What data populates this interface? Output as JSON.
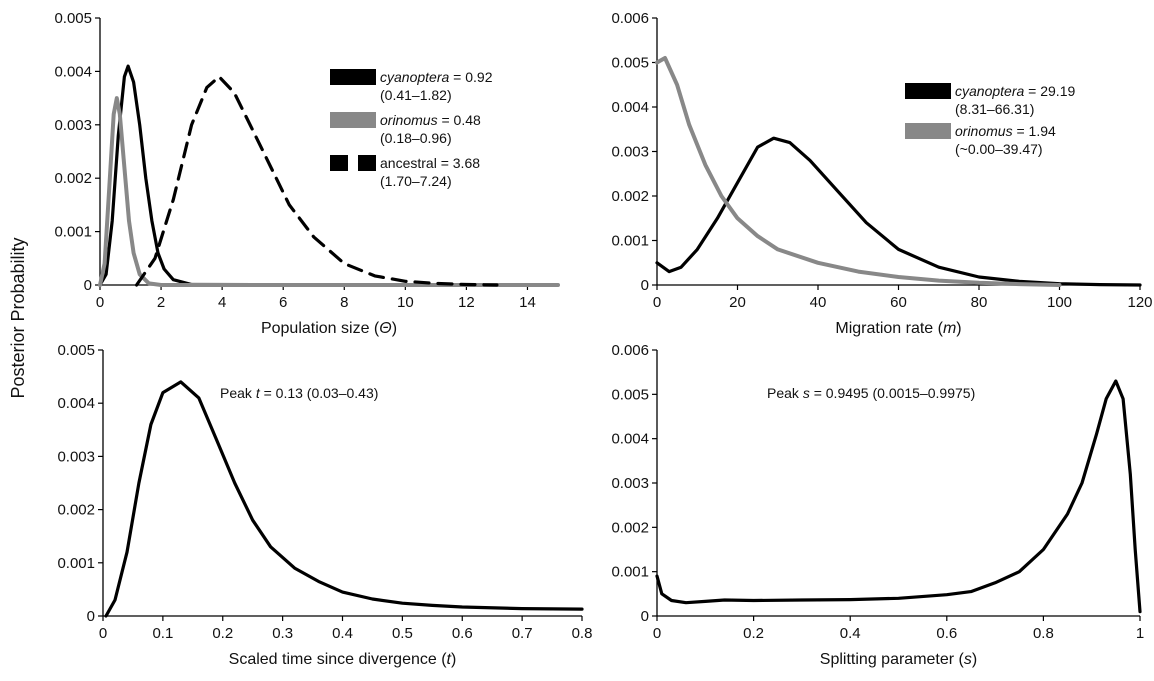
{
  "figure": {
    "shared_ylabel": "Posterior Probability"
  },
  "chart_data": [
    {
      "id": "population-size",
      "type": "line",
      "xlabel": "Population size (Θ)",
      "xlabel_parts": [
        "Population size (",
        "Θ",
        ")"
      ],
      "xlim": [
        0,
        15
      ],
      "ylim": [
        0,
        0.005
      ],
      "xticks": [
        0,
        2,
        4,
        6,
        8,
        10,
        12,
        14
      ],
      "xtick_labels": [
        "0",
        "2",
        "4",
        "6",
        "8",
        "10",
        "12",
        "14"
      ],
      "yticks": [
        0,
        0.001,
        0.002,
        0.003,
        0.004,
        0.005
      ],
      "ytick_labels": [
        "0",
        "0.001",
        "0.002",
        "0.003",
        "0.004",
        "0.005"
      ],
      "legend_position": "top-right",
      "series": [
        {
          "name": "cyanoptera",
          "color": "#000000",
          "dash": "solid",
          "legend_label": [
            "cyanoptera",
            " =  0.92"
          ],
          "legend_ci": "(0.41–1.82)",
          "points": [
            [
              0,
              0
            ],
            [
              0.2,
              0.0002
            ],
            [
              0.4,
              0.0012
            ],
            [
              0.6,
              0.0028
            ],
            [
              0.8,
              0.0039
            ],
            [
              0.92,
              0.0041
            ],
            [
              1.1,
              0.0038
            ],
            [
              1.3,
              0.003
            ],
            [
              1.5,
              0.002
            ],
            [
              1.7,
              0.0012
            ],
            [
              1.9,
              0.0006
            ],
            [
              2.1,
              0.0003
            ],
            [
              2.4,
              0.0001
            ],
            [
              3.0,
              1e-05
            ],
            [
              15,
              0
            ]
          ]
        },
        {
          "name": "orinomus",
          "color": "#888888",
          "dash": "solid",
          "legend_label": [
            "orinomus",
            " = 0.48"
          ],
          "legend_ci": "(0.18–0.96)",
          "points": [
            [
              0,
              0
            ],
            [
              0.15,
              0.0004
            ],
            [
              0.3,
              0.0018
            ],
            [
              0.45,
              0.0032
            ],
            [
              0.55,
              0.0035
            ],
            [
              0.65,
              0.0032
            ],
            [
              0.8,
              0.0022
            ],
            [
              0.95,
              0.0012
            ],
            [
              1.1,
              0.0006
            ],
            [
              1.3,
              0.0002
            ],
            [
              1.6,
              3e-05
            ],
            [
              2.0,
              0
            ],
            [
              15,
              0
            ]
          ]
        },
        {
          "name": "ancestral",
          "color": "#000000",
          "dash": "dashed",
          "legend_label": [
            "",
            "ancestral = 3.68"
          ],
          "legend_ci": "(1.70–7.24)",
          "points": [
            [
              1.2,
              0
            ],
            [
              1.8,
              0.0005
            ],
            [
              2.4,
              0.0016
            ],
            [
              3.0,
              0.003
            ],
            [
              3.5,
              0.0037
            ],
            [
              3.9,
              0.0039
            ],
            [
              4.4,
              0.0036
            ],
            [
              5.0,
              0.0029
            ],
            [
              5.6,
              0.0022
            ],
            [
              6.2,
              0.0015
            ],
            [
              7.0,
              0.0009
            ],
            [
              8.0,
              0.0004
            ],
            [
              9.0,
              0.00017
            ],
            [
              10.0,
              7e-05
            ],
            [
              11.0,
              3e-05
            ],
            [
              12.0,
              1e-05
            ],
            [
              13.0,
              0
            ]
          ]
        }
      ]
    },
    {
      "id": "migration-rate",
      "type": "line",
      "xlabel": "Migration rate (m)",
      "xlabel_parts": [
        "Migration rate (",
        "m",
        ")"
      ],
      "xlim": [
        0,
        120
      ],
      "ylim": [
        0,
        0.006
      ],
      "xticks": [
        0,
        20,
        40,
        60,
        80,
        100,
        120
      ],
      "xtick_labels": [
        "0",
        "20",
        "40",
        "60",
        "80",
        "100",
        "120"
      ],
      "yticks": [
        0,
        0.001,
        0.002,
        0.003,
        0.004,
        0.005,
        0.006
      ],
      "ytick_labels": [
        "0",
        "0.001",
        "0.002",
        "0.003",
        "0.004",
        "0.005",
        "0.006"
      ],
      "legend_position": "top-right",
      "series": [
        {
          "name": "cyanoptera",
          "color": "#000000",
          "dash": "solid",
          "legend_label": [
            "cyanoptera",
            " =  29.19"
          ],
          "legend_ci": "(8.31–66.31)",
          "points": [
            [
              0,
              0.0005
            ],
            [
              3,
              0.0003
            ],
            [
              6,
              0.0004
            ],
            [
              10,
              0.0008
            ],
            [
              15,
              0.0015
            ],
            [
              20,
              0.0023
            ],
            [
              25,
              0.0031
            ],
            [
              29,
              0.0033
            ],
            [
              33,
              0.0032
            ],
            [
              38,
              0.0028
            ],
            [
              45,
              0.0021
            ],
            [
              52,
              0.0014
            ],
            [
              60,
              0.0008
            ],
            [
              70,
              0.0004
            ],
            [
              80,
              0.00018
            ],
            [
              90,
              8e-05
            ],
            [
              100,
              3e-05
            ],
            [
              110,
              1e-05
            ],
            [
              120,
              0
            ]
          ]
        },
        {
          "name": "orinomus",
          "color": "#888888",
          "dash": "solid",
          "legend_label": [
            "orinomus",
            " = 1.94"
          ],
          "legend_ci": "(~0.00–39.47)",
          "points": [
            [
              0,
              0.005
            ],
            [
              2,
              0.0051
            ],
            [
              5,
              0.0045
            ],
            [
              8,
              0.0036
            ],
            [
              12,
              0.0027
            ],
            [
              16,
              0.002
            ],
            [
              20,
              0.0015
            ],
            [
              25,
              0.0011
            ],
            [
              30,
              0.0008
            ],
            [
              40,
              0.0005
            ],
            [
              50,
              0.0003
            ],
            [
              60,
              0.00018
            ],
            [
              70,
              0.0001
            ],
            [
              80,
              5e-05
            ],
            [
              90,
              2e-05
            ],
            [
              100,
              0
            ]
          ]
        }
      ]
    },
    {
      "id": "scaled-time",
      "type": "line",
      "xlabel": "Scaled time since divergence (t)",
      "xlabel_parts": [
        "Scaled time since divergence (",
        "t",
        ")"
      ],
      "xlim": [
        0,
        0.8
      ],
      "ylim": [
        0,
        0.005
      ],
      "xticks": [
        0,
        0.1,
        0.2,
        0.3,
        0.4,
        0.5,
        0.6,
        0.7,
        0.8
      ],
      "xtick_labels": [
        "0",
        "0.1",
        "0.2",
        "0.3",
        "0.4",
        "0.5",
        "0.6",
        "0.7",
        "0.8"
      ],
      "yticks": [
        0,
        0.001,
        0.002,
        0.003,
        0.004,
        0.005
      ],
      "ytick_labels": [
        "0",
        "0.001",
        "0.002",
        "0.003",
        "0.004",
        "0.005"
      ],
      "annotation": [
        "Peak ",
        "t",
        " = 0.13 (0.03–0.43)"
      ],
      "series": [
        {
          "name": "",
          "color": "#000000",
          "dash": "solid",
          "points": [
            [
              0.005,
              0
            ],
            [
              0.02,
              0.0003
            ],
            [
              0.04,
              0.0012
            ],
            [
              0.06,
              0.0025
            ],
            [
              0.08,
              0.0036
            ],
            [
              0.1,
              0.0042
            ],
            [
              0.13,
              0.0044
            ],
            [
              0.16,
              0.0041
            ],
            [
              0.19,
              0.0033
            ],
            [
              0.22,
              0.0025
            ],
            [
              0.25,
              0.0018
            ],
            [
              0.28,
              0.0013
            ],
            [
              0.32,
              0.0009
            ],
            [
              0.36,
              0.00065
            ],
            [
              0.4,
              0.00045
            ],
            [
              0.45,
              0.00032
            ],
            [
              0.5,
              0.00024
            ],
            [
              0.55,
              0.0002
            ],
            [
              0.6,
              0.00017
            ],
            [
              0.7,
              0.00014
            ],
            [
              0.8,
              0.00013
            ]
          ]
        }
      ]
    },
    {
      "id": "splitting-parameter",
      "type": "line",
      "xlabel": "Splitting parameter (s)",
      "xlabel_parts": [
        "Splitting parameter (",
        "s",
        ")"
      ],
      "xlim": [
        0,
        1
      ],
      "ylim": [
        0,
        0.006
      ],
      "xticks": [
        0,
        0.2,
        0.4,
        0.6,
        0.8,
        1
      ],
      "xtick_labels": [
        "0",
        "0.2",
        "0.4",
        "0.6",
        "0.8",
        "1"
      ],
      "yticks": [
        0,
        0.001,
        0.002,
        0.003,
        0.004,
        0.005,
        0.006
      ],
      "ytick_labels": [
        "0",
        "0.001",
        "0.002",
        "0.003",
        "0.004",
        "0.005",
        "0.006"
      ],
      "annotation": [
        "Peak ",
        "s",
        " = 0.9495 (0.0015–0.9975)"
      ],
      "series": [
        {
          "name": "",
          "color": "#000000",
          "dash": "solid",
          "points": [
            [
              0,
              0.0009
            ],
            [
              0.01,
              0.0005
            ],
            [
              0.03,
              0.00035
            ],
            [
              0.06,
              0.0003
            ],
            [
              0.1,
              0.00033
            ],
            [
              0.14,
              0.00036
            ],
            [
              0.2,
              0.00035
            ],
            [
              0.3,
              0.00036
            ],
            [
              0.4,
              0.00037
            ],
            [
              0.5,
              0.0004
            ],
            [
              0.6,
              0.00048
            ],
            [
              0.65,
              0.00055
            ],
            [
              0.7,
              0.00075
            ],
            [
              0.75,
              0.001
            ],
            [
              0.8,
              0.0015
            ],
            [
              0.85,
              0.0023
            ],
            [
              0.88,
              0.003
            ],
            [
              0.91,
              0.0041
            ],
            [
              0.93,
              0.0049
            ],
            [
              0.95,
              0.0053
            ],
            [
              0.965,
              0.0049
            ],
            [
              0.98,
              0.0032
            ],
            [
              0.99,
              0.0015
            ],
            [
              1.0,
              0.0001
            ]
          ]
        }
      ]
    }
  ]
}
